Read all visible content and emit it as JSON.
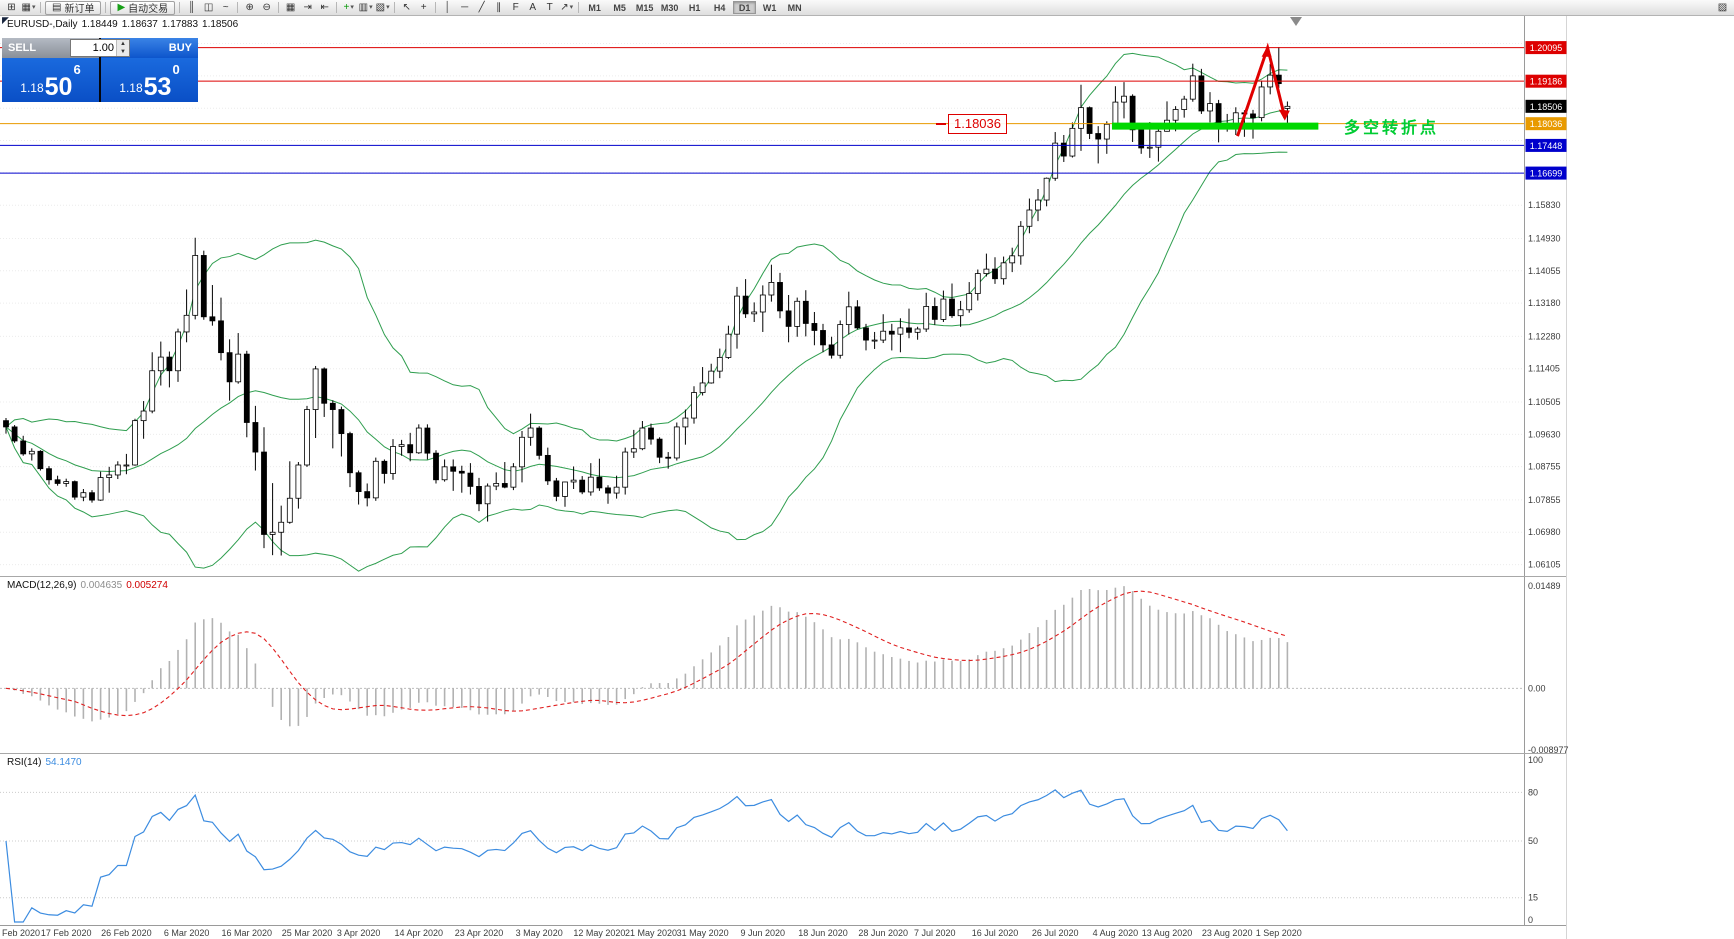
{
  "toolbar": {
    "groups": [
      {
        "items": [
          {
            "name": "new-chart-icon",
            "glyph": "⊞"
          },
          {
            "name": "chart-profiles-icon",
            "glyph": "▦",
            "dropdown": true
          }
        ]
      },
      {
        "button": {
          "name": "new-order-button",
          "icon_name": "new-order-icon",
          "glyph": "▤",
          "label": "新订单"
        }
      },
      {
        "button": {
          "name": "auto-trading-button",
          "icon_name": "play-icon",
          "glyph": "▶",
          "label": "自动交易",
          "icon_color": "#18a018"
        }
      },
      {
        "items": [
          {
            "name": "bar-chart-icon",
            "glyph": "║"
          },
          {
            "name": "candlestick-chart-icon",
            "glyph": "◫"
          },
          {
            "name": "line-chart-icon",
            "glyph": "~"
          }
        ]
      },
      {
        "items": [
          {
            "name": "zoom-in-icon",
            "glyph": "⊕"
          },
          {
            "name": "zoom-out-icon",
            "glyph": "⊖"
          }
        ]
      },
      {
        "items": [
          {
            "name": "tile-windows-icon",
            "glyph": "▦"
          },
          {
            "name": "auto-scroll-icon",
            "glyph": "⇥"
          },
          {
            "name": "chart-shift-icon",
            "glyph": "⇤"
          }
        ]
      },
      {
        "items": [
          {
            "name": "indicators-icon",
            "glyph": "+",
            "color": "#0a9a0a",
            "dropdown": true
          },
          {
            "name": "periods-menu-icon",
            "glyph": "▥",
            "dropdown": true
          },
          {
            "name": "templates-icon",
            "glyph": "▧",
            "dropdown": true
          }
        ]
      },
      {
        "items": [
          {
            "name": "cursor-icon",
            "glyph": "↖"
          },
          {
            "name": "crosshair-icon",
            "glyph": "+"
          }
        ]
      },
      {
        "items": [
          {
            "name": "vertical-line-icon",
            "glyph": "│"
          },
          {
            "name": "horizontal-line-icon",
            "glyph": "─"
          },
          {
            "name": "trendline-icon",
            "glyph": "╱"
          },
          {
            "name": "channel-icon",
            "glyph": "∥"
          },
          {
            "name": "fibonacci-icon",
            "glyph": "F"
          },
          {
            "name": "text-icon",
            "glyph": "A"
          },
          {
            "name": "label-icon",
            "glyph": "T"
          },
          {
            "name": "arrows-icon",
            "glyph": "↗",
            "dropdown": true
          }
        ]
      }
    ],
    "timeframes": [
      "M1",
      "M5",
      "M15",
      "M30",
      "H1",
      "H4",
      "D1",
      "W1",
      "MN"
    ],
    "active_timeframe": "D1",
    "right_icons": [
      {
        "name": "window-arrange-icon",
        "glyph": "▨"
      }
    ]
  },
  "chart": {
    "header": {
      "symbol_period": "EURUSD-,Daily",
      "open": "1.18449",
      "high": "1.18637",
      "low": "1.17883",
      "close": "1.18506"
    },
    "trade_panel": {
      "sell_label": "SELL",
      "buy_label": "BUY",
      "volume": "1.00",
      "sell_price": {
        "base": "1.18",
        "big": "50",
        "sup": "6"
      },
      "buy_price": {
        "base": "1.18",
        "big": "53",
        "sup": "0"
      }
    },
    "h_lines": [
      {
        "price": 1.20095,
        "label": "1.20095",
        "color": "#dd0000"
      },
      {
        "price": 1.19186,
        "label": "1.19186",
        "color": "#dd0000"
      },
      {
        "price": 1.18506,
        "label": "1.18506",
        "color": "#000000",
        "line": false
      },
      {
        "price": 1.18036,
        "label": "1.18036",
        "color": "#e89a00"
      },
      {
        "price": 1.17448,
        "label": "1.17448",
        "color": "#0000cc"
      },
      {
        "price": 1.16699,
        "label": "1.16699",
        "color": "#0000cc"
      }
    ],
    "y_axis_labels": [
      "1.15830",
      "1.14930",
      "1.14055",
      "1.13180",
      "1.12280",
      "1.11405",
      "1.10505",
      "1.09630",
      "1.08755",
      "1.07855",
      "1.06980",
      "1.06105"
    ],
    "macd": {
      "title": "MACD(12,26,9)",
      "value1": "0.004635",
      "value2": "0.005274",
      "scale_labels": [
        "0.01489",
        "0.00",
        "-0.008977"
      ]
    },
    "rsi": {
      "title": "RSI(14)",
      "value": "54.1470",
      "scale_labels": [
        "100",
        "80",
        "50",
        "15",
        "0"
      ],
      "levels": [
        80,
        50,
        15
      ]
    },
    "annotations": {
      "level_label": "1.18036",
      "turning_point_text": "多空转折点",
      "support_bar": {
        "start_index": 128.6,
        "end_index": 152.6,
        "price": 1.1797,
        "thickness": 7,
        "color": "#00d800"
      },
      "zigzag": {
        "color": "#e00000",
        "points": [
          [
            143.2,
            1.177
          ],
          [
            146.7,
            1.2009
          ],
          [
            148.7,
            1.182
          ]
        ]
      }
    },
    "x_axis_labels": [
      {
        "text": "Feb 2020",
        "index": 0
      },
      {
        "text": "17 Feb 2020",
        "index": 7
      },
      {
        "text": "26 Feb 2020",
        "index": 14
      },
      {
        "text": "6 Mar 2020",
        "index": 21
      },
      {
        "text": "16 Mar 2020",
        "index": 28
      },
      {
        "text": "25 Mar 2020",
        "index": 35
      },
      {
        "text": "3 Apr 2020",
        "index": 41
      },
      {
        "text": "14 Apr 2020",
        "index": 48
      },
      {
        "text": "23 Apr 2020",
        "index": 55
      },
      {
        "text": "3 May 2020",
        "index": 62
      },
      {
        "text": "12 May 2020",
        "index": 69
      },
      {
        "text": "21 May 2020",
        "index": 75
      },
      {
        "text": "31 May 2020",
        "index": 81
      },
      {
        "text": "9 Jun 2020",
        "index": 88
      },
      {
        "text": "18 Jun 2020",
        "index": 95
      },
      {
        "text": "28 Jun 2020",
        "index": 102
      },
      {
        "text": "7 Jul 2020",
        "index": 108
      },
      {
        "text": "16 Jul 2020",
        "index": 115
      },
      {
        "text": "26 Jul 2020",
        "index": 122
      },
      {
        "text": "4 Aug 2020",
        "index": 129
      },
      {
        "text": "13 Aug 2020",
        "index": 135
      },
      {
        "text": "23 Aug 2020",
        "index": 142
      },
      {
        "text": "1 Sep 2020",
        "index": 148
      }
    ]
  },
  "chart_data": {
    "type": "candlestick",
    "symbol": "EURUSD",
    "timeframe": "Daily",
    "indicators": {
      "bollinger": {
        "period": 20,
        "deviation": 2
      },
      "macd": {
        "fast": 12,
        "slow": 26,
        "signal": 9
      },
      "rsi": {
        "period": 14
      }
    },
    "candles": [
      [
        1.1,
        1.1007,
        1.0965,
        1.0983
      ],
      [
        1.0983,
        1.0988,
        1.094,
        1.0945
      ],
      [
        1.0945,
        1.0959,
        1.0905,
        1.091
      ],
      [
        1.091,
        1.0925,
        1.0892,
        1.0917
      ],
      [
        1.0917,
        1.092,
        1.0865,
        1.087
      ],
      [
        1.087,
        1.0877,
        1.0827,
        1.084
      ],
      [
        1.084,
        1.0851,
        1.0824,
        1.083
      ],
      [
        1.083,
        1.0843,
        1.0821,
        1.0835
      ],
      [
        1.0835,
        1.0838,
        1.0786,
        1.0793
      ],
      [
        1.0793,
        1.0815,
        1.0782,
        1.0805
      ],
      [
        1.0805,
        1.0812,
        1.0778,
        1.0785
      ],
      [
        1.0785,
        1.0862,
        1.0783,
        1.0846
      ],
      [
        1.0846,
        1.0875,
        1.0805,
        1.0853
      ],
      [
        1.0853,
        1.089,
        1.0842,
        1.088
      ],
      [
        1.088,
        1.091,
        1.0855,
        1.088
      ],
      [
        1.088,
        1.1005,
        1.0878,
        1.1
      ],
      [
        1.1,
        1.1053,
        1.0951,
        1.1026
      ],
      [
        1.1026,
        1.1185,
        1.102,
        1.1135
      ],
      [
        1.1135,
        1.1214,
        1.1095,
        1.1172
      ],
      [
        1.1172,
        1.1187,
        1.109,
        1.1135
      ],
      [
        1.1135,
        1.1249,
        1.1105,
        1.124
      ],
      [
        1.124,
        1.1355,
        1.1212,
        1.1285
      ],
      [
        1.1285,
        1.1495,
        1.1274,
        1.1447
      ],
      [
        1.1447,
        1.146,
        1.1273,
        1.1281
      ],
      [
        1.1281,
        1.1367,
        1.1257,
        1.127
      ],
      [
        1.127,
        1.1333,
        1.1163,
        1.1184
      ],
      [
        1.1184,
        1.122,
        1.1054,
        1.1105
      ],
      [
        1.1105,
        1.1237,
        1.11,
        1.118
      ],
      [
        1.118,
        1.1189,
        1.0955,
        1.0995
      ],
      [
        1.0995,
        1.104,
        1.0865,
        1.0915
      ],
      [
        1.0915,
        1.0982,
        1.0655,
        1.0692
      ],
      [
        1.0692,
        1.0831,
        1.0636,
        1.0698
      ],
      [
        1.0698,
        1.077,
        1.0635,
        1.0725
      ],
      [
        1.0725,
        1.089,
        1.0721,
        1.079
      ],
      [
        1.079,
        1.0888,
        1.0762,
        1.088
      ],
      [
        1.088,
        1.104,
        1.0875,
        1.103
      ],
      [
        1.103,
        1.1148,
        1.0953,
        1.114
      ],
      [
        1.114,
        1.1144,
        1.101,
        1.1047
      ],
      [
        1.1047,
        1.1055,
        1.0925,
        1.103
      ],
      [
        1.103,
        1.1038,
        1.0903,
        1.0965
      ],
      [
        1.0965,
        1.097,
        1.082,
        1.0859
      ],
      [
        1.0859,
        1.0865,
        1.0773,
        1.0808
      ],
      [
        1.0808,
        1.083,
        1.0768,
        1.0791
      ],
      [
        1.0791,
        1.09,
        1.0783,
        1.089
      ],
      [
        1.089,
        1.0895,
        1.083,
        1.0857
      ],
      [
        1.0857,
        1.095,
        1.084,
        1.093
      ],
      [
        1.093,
        1.0948,
        1.0905,
        1.0935
      ],
      [
        1.0935,
        1.0967,
        1.089,
        1.0913
      ],
      [
        1.0913,
        1.099,
        1.091,
        1.098
      ],
      [
        1.098,
        1.099,
        1.0895,
        1.0912
      ],
      [
        1.0912,
        1.092,
        1.083,
        1.084
      ],
      [
        1.084,
        1.0895,
        1.0835,
        1.0875
      ],
      [
        1.0875,
        1.0895,
        1.081,
        1.0863
      ],
      [
        1.0863,
        1.0878,
        1.0805,
        1.0858
      ],
      [
        1.0858,
        1.0885,
        1.08,
        1.0822
      ],
      [
        1.0822,
        1.0845,
        1.0755,
        1.0775
      ],
      [
        1.0775,
        1.083,
        1.0727,
        1.0823
      ],
      [
        1.0823,
        1.086,
        1.0812,
        1.083
      ],
      [
        1.083,
        1.0888,
        1.0817,
        1.082
      ],
      [
        1.082,
        1.0885,
        1.0812,
        1.0875
      ],
      [
        1.0875,
        1.0972,
        1.0833,
        1.0955
      ],
      [
        1.0955,
        1.1019,
        1.0932,
        1.098
      ],
      [
        1.098,
        1.0985,
        1.0895,
        1.0906
      ],
      [
        1.0906,
        1.0927,
        1.0826,
        1.0837
      ],
      [
        1.0837,
        1.0845,
        1.0782,
        1.0795
      ],
      [
        1.0795,
        1.0835,
        1.0767,
        1.0834
      ],
      [
        1.0834,
        1.0876,
        1.0815,
        1.0839
      ],
      [
        1.0839,
        1.085,
        1.0801,
        1.0807
      ],
      [
        1.0807,
        1.0885,
        1.0797,
        1.0847
      ],
      [
        1.0847,
        1.0897,
        1.081,
        1.0818
      ],
      [
        1.0818,
        1.0825,
        1.0775,
        1.0804
      ],
      [
        1.0804,
        1.0851,
        1.0789,
        1.082
      ],
      [
        1.082,
        1.0927,
        1.08,
        1.0915
      ],
      [
        1.0915,
        1.0975,
        1.0899,
        1.0924
      ],
      [
        1.0924,
        1.0999,
        1.092,
        1.098
      ],
      [
        1.098,
        1.0992,
        1.0935,
        1.095
      ],
      [
        1.095,
        1.0955,
        1.0885,
        1.0901
      ],
      [
        1.0901,
        1.0915,
        1.087,
        1.0899
      ],
      [
        1.0899,
        1.0995,
        1.0892,
        1.0983
      ],
      [
        1.0983,
        1.103,
        1.0935,
        1.1007
      ],
      [
        1.1007,
        1.1093,
        1.0992,
        1.1076
      ],
      [
        1.1076,
        1.1145,
        1.1068,
        1.1102
      ],
      [
        1.1102,
        1.1154,
        1.11,
        1.1134
      ],
      [
        1.1134,
        1.1195,
        1.1115,
        1.1171
      ],
      [
        1.1171,
        1.1257,
        1.1167,
        1.1234
      ],
      [
        1.1234,
        1.1362,
        1.1195,
        1.1337
      ],
      [
        1.1337,
        1.1383,
        1.1278,
        1.1289
      ],
      [
        1.1289,
        1.132,
        1.1267,
        1.1294
      ],
      [
        1.1294,
        1.1366,
        1.124,
        1.134
      ],
      [
        1.134,
        1.1422,
        1.1322,
        1.1374
      ],
      [
        1.1374,
        1.14,
        1.1277,
        1.1297
      ],
      [
        1.1297,
        1.134,
        1.1212,
        1.1255
      ],
      [
        1.1255,
        1.1333,
        1.1227,
        1.1323
      ],
      [
        1.1323,
        1.1353,
        1.1228,
        1.1263
      ],
      [
        1.1263,
        1.1294,
        1.1204,
        1.1244
      ],
      [
        1.1244,
        1.1262,
        1.1185,
        1.1205
      ],
      [
        1.1205,
        1.1227,
        1.1168,
        1.1177
      ],
      [
        1.1177,
        1.1271,
        1.1168,
        1.126
      ],
      [
        1.126,
        1.1349,
        1.1233,
        1.1308
      ],
      [
        1.1308,
        1.1326,
        1.1247,
        1.1251
      ],
      [
        1.1251,
        1.1262,
        1.119,
        1.1218
      ],
      [
        1.1218,
        1.124,
        1.1194,
        1.1218
      ],
      [
        1.1218,
        1.1288,
        1.121,
        1.1242
      ],
      [
        1.1242,
        1.1262,
        1.119,
        1.1234
      ],
      [
        1.1234,
        1.1277,
        1.1185,
        1.1251
      ],
      [
        1.1251,
        1.1303,
        1.1223,
        1.1239
      ],
      [
        1.1239,
        1.1254,
        1.1219,
        1.1248
      ],
      [
        1.1248,
        1.1346,
        1.124,
        1.1309
      ],
      [
        1.1309,
        1.1333,
        1.1259,
        1.1274
      ],
      [
        1.1274,
        1.1352,
        1.1267,
        1.1329
      ],
      [
        1.1329,
        1.1371,
        1.1278,
        1.1284
      ],
      [
        1.1284,
        1.1324,
        1.1254,
        1.13
      ],
      [
        1.13,
        1.1375,
        1.1292,
        1.1344
      ],
      [
        1.1344,
        1.1409,
        1.1325,
        1.1398
      ],
      [
        1.1398,
        1.1452,
        1.139,
        1.141
      ],
      [
        1.141,
        1.1442,
        1.137,
        1.1384
      ],
      [
        1.1384,
        1.1444,
        1.1368,
        1.1427
      ],
      [
        1.1427,
        1.1468,
        1.1402,
        1.1446
      ],
      [
        1.1446,
        1.154,
        1.1422,
        1.1526
      ],
      [
        1.1526,
        1.1601,
        1.1507,
        1.157
      ],
      [
        1.157,
        1.1627,
        1.154,
        1.1597
      ],
      [
        1.1597,
        1.1658,
        1.158,
        1.1656
      ],
      [
        1.1656,
        1.1781,
        1.1649,
        1.1751
      ],
      [
        1.1751,
        1.1773,
        1.17,
        1.1716
      ],
      [
        1.1716,
        1.1807,
        1.1712,
        1.1791
      ],
      [
        1.1791,
        1.1909,
        1.173,
        1.1847
      ],
      [
        1.1847,
        1.185,
        1.1762,
        1.1777
      ],
      [
        1.1777,
        1.1797,
        1.1696,
        1.1762
      ],
      [
        1.1762,
        1.181,
        1.1722,
        1.1802
      ],
      [
        1.1802,
        1.1905,
        1.179,
        1.1862
      ],
      [
        1.1862,
        1.1916,
        1.1818,
        1.1878
      ],
      [
        1.1878,
        1.1883,
        1.1754,
        1.1787
      ],
      [
        1.1787,
        1.1798,
        1.1722,
        1.1738
      ],
      [
        1.1738,
        1.1808,
        1.1711,
        1.174
      ],
      [
        1.174,
        1.1793,
        1.1701,
        1.1783
      ],
      [
        1.1783,
        1.1864,
        1.1782,
        1.1813
      ],
      [
        1.1813,
        1.1851,
        1.1783,
        1.1842
      ],
      [
        1.1842,
        1.1879,
        1.182,
        1.187
      ],
      [
        1.187,
        1.1966,
        1.1863,
        1.1933
      ],
      [
        1.1933,
        1.1952,
        1.183,
        1.1838
      ],
      [
        1.1838,
        1.1889,
        1.1807,
        1.1858
      ],
      [
        1.1858,
        1.1868,
        1.1753,
        1.1796
      ],
      [
        1.1796,
        1.183,
        1.1782,
        1.1789
      ],
      [
        1.1789,
        1.1848,
        1.1773,
        1.1833
      ],
      [
        1.1833,
        1.184,
        1.1768,
        1.183
      ],
      [
        1.183,
        1.1841,
        1.1763,
        1.182
      ],
      [
        1.182,
        1.192,
        1.181,
        1.1903
      ],
      [
        1.1903,
        1.1965,
        1.1883,
        1.1935
      ],
      [
        1.1935,
        1.2011,
        1.19,
        1.1912
      ],
      [
        1.18449,
        1.18637,
        1.17883,
        1.18506
      ]
    ]
  }
}
